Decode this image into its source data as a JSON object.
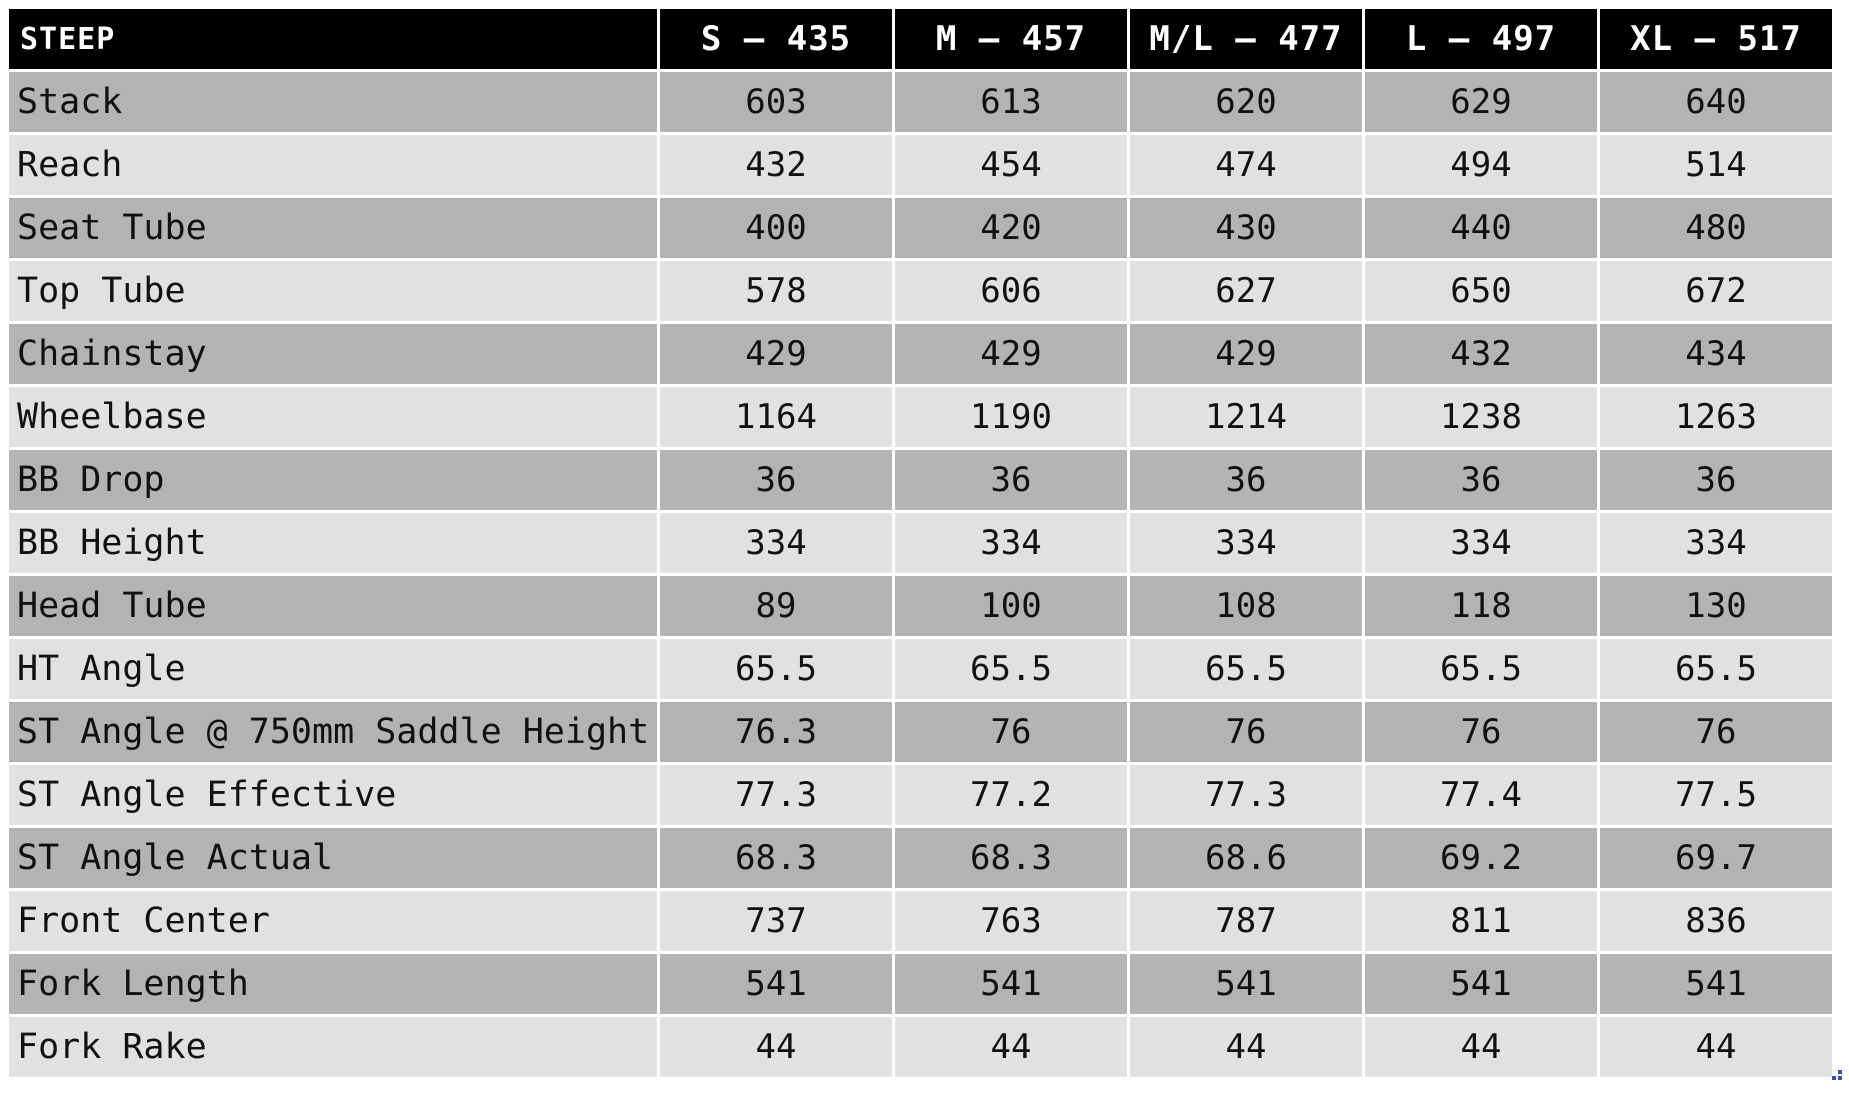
{
  "table": {
    "model": "STEEP",
    "sizes": [
      "S – 435",
      "M – 457",
      "M/L – 477",
      "L – 497",
      "XL – 517"
    ],
    "rows": [
      {
        "label": "Stack",
        "values": [
          "603",
          "613",
          "620",
          "629",
          "640"
        ]
      },
      {
        "label": "Reach",
        "values": [
          "432",
          "454",
          "474",
          "494",
          "514"
        ]
      },
      {
        "label": "Seat Tube",
        "values": [
          "400",
          "420",
          "430",
          "440",
          "480"
        ]
      },
      {
        "label": "Top Tube",
        "values": [
          "578",
          "606",
          "627",
          "650",
          "672"
        ]
      },
      {
        "label": "Chainstay",
        "values": [
          "429",
          "429",
          "429",
          "432",
          "434"
        ]
      },
      {
        "label": "Wheelbase",
        "values": [
          "1164",
          "1190",
          "1214",
          "1238",
          "1263"
        ]
      },
      {
        "label": "BB Drop",
        "values": [
          "36",
          "36",
          "36",
          "36",
          "36"
        ]
      },
      {
        "label": "BB Height",
        "values": [
          "334",
          "334",
          "334",
          "334",
          "334"
        ]
      },
      {
        "label": "Head Tube",
        "values": [
          "89",
          "100",
          "108",
          "118",
          "130"
        ]
      },
      {
        "label": "HT Angle",
        "values": [
          "65.5",
          "65.5",
          "65.5",
          "65.5",
          "65.5"
        ]
      },
      {
        "label": "ST Angle @ 750mm Saddle Height",
        "values": [
          "76.3",
          "76",
          "76",
          "76",
          "76"
        ]
      },
      {
        "label": "ST Angle Effective",
        "values": [
          "77.3",
          "77.2",
          "77.3",
          "77.4",
          "77.5"
        ]
      },
      {
        "label": "ST Angle Actual",
        "values": [
          "68.3",
          "68.3",
          "68.6",
          "69.2",
          "69.7"
        ]
      },
      {
        "label": "Front Center",
        "values": [
          "737",
          "763",
          "787",
          "811",
          "836"
        ]
      },
      {
        "label": "Fork Length",
        "values": [
          "541",
          "541",
          "541",
          "541",
          "541"
        ]
      },
      {
        "label": "Fork Rake",
        "values": [
          "44",
          "44",
          "44",
          "44",
          "44"
        ]
      }
    ]
  },
  "colors": {
    "header_bg": "#000000",
    "header_text": "#ffffff",
    "row_dark": "#b3b3b3",
    "row_light": "#e1e1e1",
    "corner_handle": "#3b4fb0"
  },
  "icons": {
    "corner_handle": "resize-handle-icon"
  }
}
